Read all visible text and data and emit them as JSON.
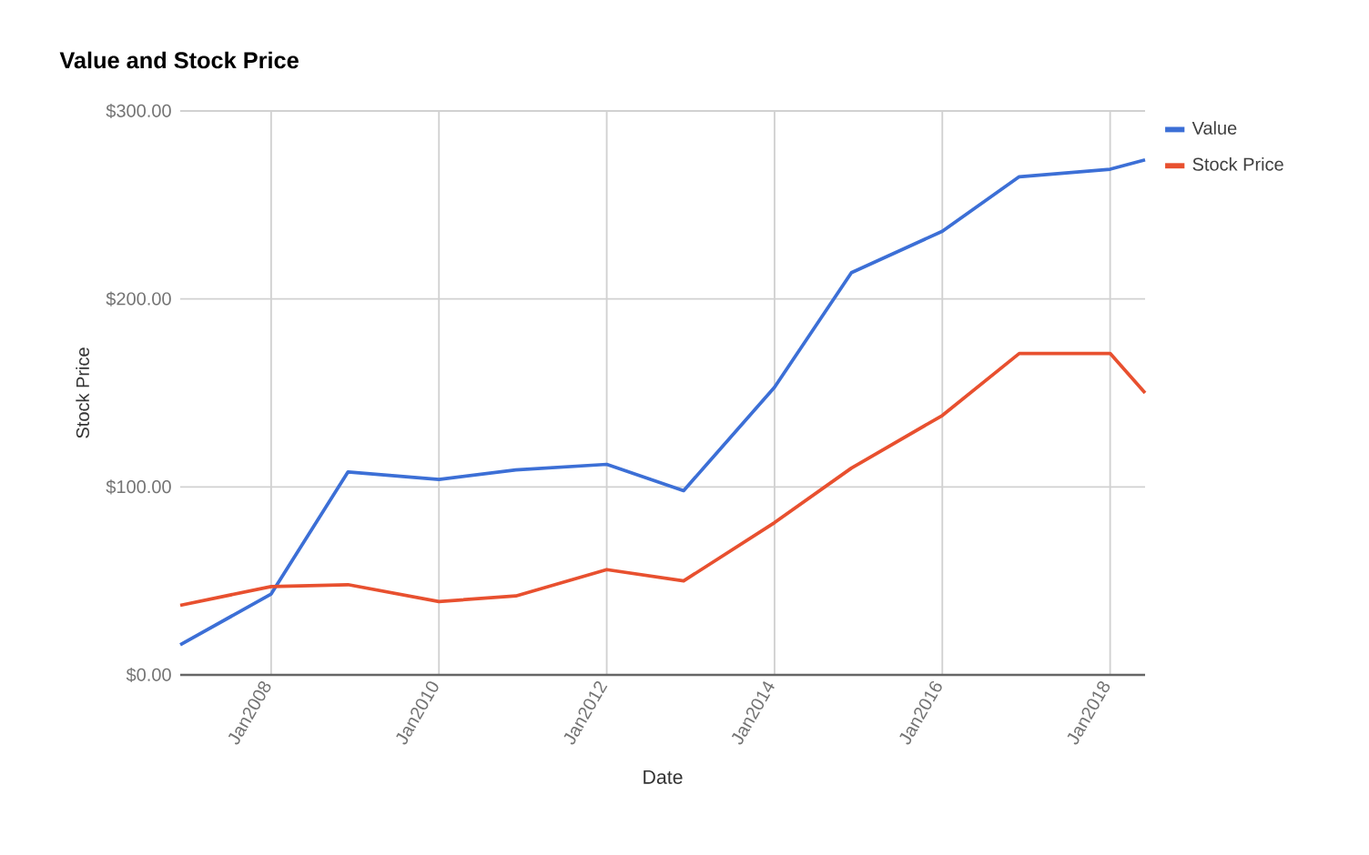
{
  "chart_data": {
    "type": "line",
    "title": "Value and Stock Price",
    "xlabel": "Date",
    "ylabel": "Stock Price",
    "x": [
      "2006-12",
      "2008-01",
      "2008-12",
      "2010-01",
      "2010-12",
      "2012-01",
      "2012-12",
      "2014-01",
      "2014-12",
      "2016-01",
      "2016-12",
      "2018-01",
      "2018-06"
    ],
    "series": [
      {
        "name": "Value",
        "color": "#3c6fd6",
        "values": [
          16,
          43,
          108,
          104,
          109,
          112,
          98,
          153,
          214,
          236,
          265,
          269,
          274
        ]
      },
      {
        "name": "Stock Price",
        "color": "#e8502f",
        "values": [
          37,
          47,
          48,
          39,
          42,
          56,
          50,
          81,
          110,
          138,
          171,
          171,
          150
        ]
      }
    ],
    "xlim": [
      "2006-12",
      "2018-06"
    ],
    "xticks": [
      {
        "value": "2008-01",
        "label": "Jan2008"
      },
      {
        "value": "2010-01",
        "label": "Jan2010"
      },
      {
        "value": "2012-01",
        "label": "Jan2012"
      },
      {
        "value": "2014-01",
        "label": "Jan2014"
      },
      {
        "value": "2016-01",
        "label": "Jan2016"
      },
      {
        "value": "2018-01",
        "label": "Jan2018"
      }
    ],
    "ylim": [
      0,
      300
    ],
    "yticks": [
      {
        "value": 0,
        "label": "$0.00"
      },
      {
        "value": 100,
        "label": "$100.00"
      },
      {
        "value": 200,
        "label": "$200.00"
      },
      {
        "value": 300,
        "label": "$300.00"
      }
    ],
    "grid": true,
    "legend": "right",
    "marker": "none",
    "line_style": "solid"
  }
}
